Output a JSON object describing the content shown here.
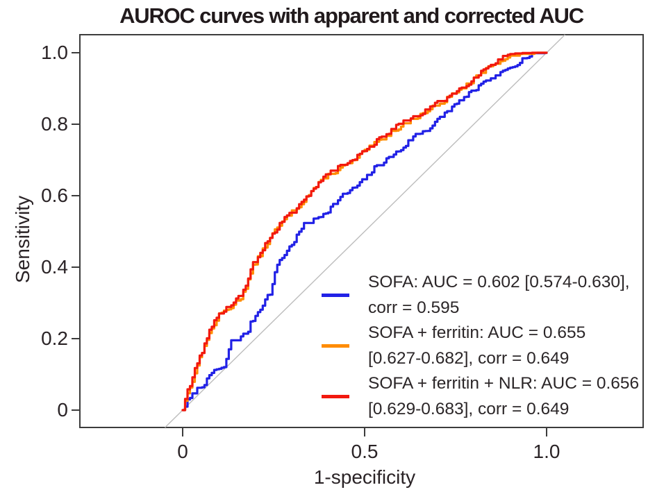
{
  "chart_data": {
    "type": "line",
    "subtype": "roc-curves",
    "title": "AUROC curves with apparent and corrected AUC",
    "xlabel": "1-specificity",
    "ylabel": "Sensitivity",
    "xlim": [
      0,
      1
    ],
    "ylim": [
      0,
      1
    ],
    "grid": false,
    "legend_position": "inside lower-right",
    "frame_color": "#3c3c3c",
    "text_color": "#2a2326",
    "reference_line": {
      "type": "diagonal y=x",
      "color": "#bdbdbd"
    },
    "x_ticks": [
      {
        "value": 0,
        "label": "0"
      },
      {
        "value": 0.5,
        "label": "0.5"
      },
      {
        "value": 1,
        "label": "1.0"
      }
    ],
    "y_ticks": [
      {
        "value": 1,
        "label": "1.0"
      },
      {
        "value": 0.8,
        "label": "0.8"
      },
      {
        "value": 0.6,
        "label": "0.6"
      },
      {
        "value": 0.4,
        "label": "0.4"
      },
      {
        "value": 0.2,
        "label": "0.2"
      },
      {
        "value": 0,
        "label": "0"
      }
    ],
    "series": [
      {
        "name": "SOFA",
        "color": "#2121e6",
        "auc": 0.602,
        "auc_ci": "0.574-0.630",
        "corrected_auc": 0.595,
        "label_lines": [
          "SOFA: AUC = 0.602 [0.574-0.630],",
          "corr = 0.595"
        ],
        "seed": 7,
        "x": [
          0,
          0.01,
          0.042,
          0.07,
          0.085,
          0.113,
          0.123,
          0.132,
          0.155,
          0.179,
          0.19,
          0.204,
          0.217,
          0.242,
          0.25,
          0.26,
          0.29,
          0.31,
          0.33,
          0.36,
          0.4,
          0.44,
          0.47,
          0.5,
          0.53,
          0.56,
          0.6,
          0.64,
          0.68,
          0.72,
          0.77,
          0.82,
          0.86,
          0.9,
          0.94,
          0.97,
          1
        ],
        "y": [
          0,
          0.02,
          0.06,
          0.085,
          0.113,
          0.115,
          0.157,
          0.19,
          0.198,
          0.221,
          0.25,
          0.27,
          0.293,
          0.332,
          0.365,
          0.41,
          0.45,
          0.48,
          0.515,
          0.53,
          0.56,
          0.6,
          0.62,
          0.645,
          0.68,
          0.7,
          0.73,
          0.77,
          0.79,
          0.83,
          0.87,
          0.909,
          0.93,
          0.96,
          0.985,
          0.995,
          1
        ]
      },
      {
        "name": "SOFA + ferritin",
        "color": "#ff8c00",
        "auc": 0.655,
        "auc_ci": "0.627-0.682",
        "corrected_auc": 0.649,
        "label_lines": [
          "SOFA + ferritin: AUC = 0.655",
          "[0.627-0.682], corr = 0.649"
        ],
        "seed": 13,
        "x": [
          0,
          0.005,
          0.012,
          0.02,
          0.025,
          0.028,
          0.043,
          0.051,
          0.06,
          0.072,
          0.094,
          0.104,
          0.117,
          0.14,
          0.16,
          0.18,
          0.194,
          0.22,
          0.25,
          0.28,
          0.305,
          0.33,
          0.36,
          0.4,
          0.44,
          0.47,
          0.494,
          0.53,
          0.56,
          0.594,
          0.63,
          0.67,
          0.71,
          0.75,
          0.79,
          0.821,
          0.85,
          0.89,
          0.95,
          0.98,
          1
        ],
        "y": [
          0,
          0.025,
          0.045,
          0.06,
          0.07,
          0.095,
          0.135,
          0.15,
          0.185,
          0.21,
          0.255,
          0.27,
          0.278,
          0.295,
          0.315,
          0.362,
          0.402,
          0.447,
          0.497,
          0.532,
          0.558,
          0.584,
          0.62,
          0.656,
          0.68,
          0.696,
          0.718,
          0.746,
          0.766,
          0.792,
          0.81,
          0.836,
          0.86,
          0.886,
          0.916,
          0.942,
          0.965,
          0.987,
          0.993,
          0.997,
          1
        ]
      },
      {
        "name": "SOFA + ferritin + NLR",
        "color": "#f2190e",
        "auc": 0.656,
        "auc_ci": "0.629-0.683",
        "corrected_auc": 0.649,
        "label_lines": [
          "SOFA + ferritin + NLR: AUC = 0.656",
          "[0.629-0.683], corr = 0.649"
        ],
        "seed": 29,
        "x": [
          0,
          0.005,
          0.012,
          0.02,
          0.025,
          0.028,
          0.043,
          0.051,
          0.06,
          0.072,
          0.094,
          0.104,
          0.117,
          0.14,
          0.16,
          0.18,
          0.194,
          0.22,
          0.25,
          0.28,
          0.305,
          0.33,
          0.36,
          0.4,
          0.44,
          0.47,
          0.494,
          0.53,
          0.56,
          0.594,
          0.63,
          0.67,
          0.71,
          0.75,
          0.79,
          0.821,
          0.85,
          0.89,
          0.95,
          0.98,
          1
        ],
        "y": [
          0,
          0.03,
          0.05,
          0.065,
          0.074,
          0.1,
          0.142,
          0.155,
          0.19,
          0.216,
          0.26,
          0.274,
          0.283,
          0.3,
          0.322,
          0.37,
          0.41,
          0.45,
          0.5,
          0.535,
          0.555,
          0.58,
          0.625,
          0.66,
          0.685,
          0.7,
          0.724,
          0.75,
          0.77,
          0.798,
          0.815,
          0.84,
          0.865,
          0.89,
          0.92,
          0.948,
          0.97,
          0.99,
          0.995,
          0.998,
          1
        ]
      }
    ]
  }
}
